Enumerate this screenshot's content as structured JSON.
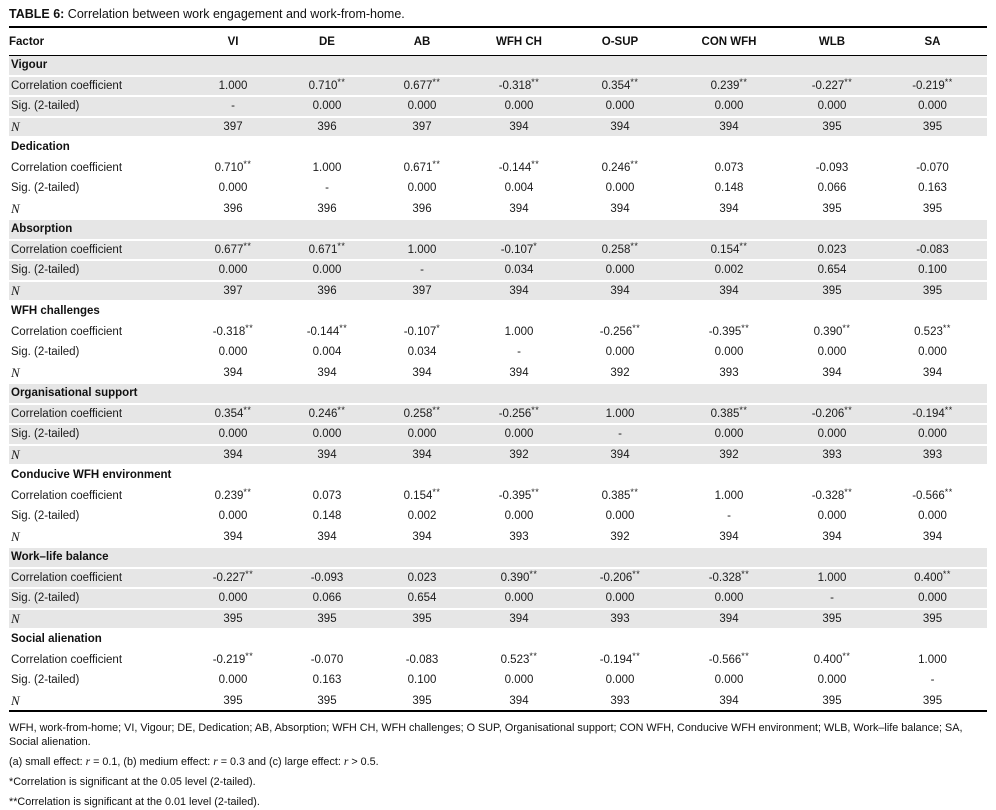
{
  "title": {
    "label": "TABLE 6:",
    "text": " Correlation between work engagement and work-from-home."
  },
  "columns": [
    "Factor",
    "VI",
    "DE",
    "AB",
    "WFH CH",
    "O-SUP",
    "CON WFH",
    "WLB",
    "SA"
  ],
  "row_labels": {
    "correlation": "Correlation coefficient",
    "sig": "Sig. (2-tailed)",
    "n": "N"
  },
  "sections": [
    {
      "factor": "Vigour",
      "shaded": true,
      "correlation": [
        "1.000",
        "0.710**",
        "0.677**",
        "-0.318**",
        "0.354**",
        "0.239**",
        "-0.227**",
        "-0.219**"
      ],
      "sig": [
        "-",
        "0.000",
        "0.000",
        "0.000",
        "0.000",
        "0.000",
        "0.000",
        "0.000"
      ],
      "n": [
        "397",
        "396",
        "397",
        "394",
        "394",
        "394",
        "395",
        "395"
      ]
    },
    {
      "factor": "Dedication",
      "shaded": false,
      "correlation": [
        "0.710**",
        "1.000",
        "0.671**",
        "-0.144**",
        "0.246**",
        "0.073",
        "-0.093",
        "-0.070"
      ],
      "sig": [
        "0.000",
        "-",
        "0.000",
        "0.004",
        "0.000",
        "0.148",
        "0.066",
        "0.163"
      ],
      "n": [
        "396",
        "396",
        "396",
        "394",
        "394",
        "394",
        "395",
        "395"
      ]
    },
    {
      "factor": "Absorption",
      "shaded": true,
      "correlation": [
        "0.677**",
        "0.671**",
        "1.000",
        "-0.107*",
        "0.258**",
        "0.154**",
        "0.023",
        "-0.083"
      ],
      "sig": [
        "0.000",
        "0.000",
        "-",
        "0.034",
        "0.000",
        "0.002",
        "0.654",
        "0.100"
      ],
      "n": [
        "397",
        "396",
        "397",
        "394",
        "394",
        "394",
        "395",
        "395"
      ]
    },
    {
      "factor": "WFH challenges",
      "shaded": false,
      "correlation": [
        "-0.318**",
        "-0.144**",
        "-0.107*",
        "1.000",
        "-0.256**",
        "-0.395**",
        "0.390**",
        "0.523**"
      ],
      "sig": [
        "0.000",
        "0.004",
        "0.034",
        "-",
        "0.000",
        "0.000",
        "0.000",
        "0.000"
      ],
      "n": [
        "394",
        "394",
        "394",
        "394",
        "392",
        "393",
        "394",
        "394"
      ]
    },
    {
      "factor": "Organisational support",
      "shaded": true,
      "correlation": [
        "0.354**",
        "0.246**",
        "0.258**",
        "-0.256**",
        "1.000",
        "0.385**",
        "-0.206**",
        "-0.194**"
      ],
      "sig": [
        "0.000",
        "0.000",
        "0.000",
        "0.000",
        "-",
        "0.000",
        "0.000",
        "0.000"
      ],
      "n": [
        "394",
        "394",
        "394",
        "392",
        "394",
        "392",
        "393",
        "393"
      ]
    },
    {
      "factor": "Conducive WFH environment",
      "shaded": false,
      "correlation": [
        "0.239**",
        "0.073",
        "0.154**",
        "-0.395**",
        "0.385**",
        "1.000",
        "-0.328**",
        "-0.566**"
      ],
      "sig": [
        "0.000",
        "0.148",
        "0.002",
        "0.000",
        "0.000",
        "-",
        "0.000",
        "0.000"
      ],
      "n": [
        "394",
        "394",
        "394",
        "393",
        "392",
        "394",
        "394",
        "394"
      ]
    },
    {
      "factor": "Work–life balance",
      "shaded": true,
      "correlation": [
        "-0.227**",
        "-0.093",
        "0.023",
        "0.390**",
        "-0.206**",
        "-0.328**",
        "1.000",
        "0.400**"
      ],
      "sig": [
        "0.000",
        "0.066",
        "0.654",
        "0.000",
        "0.000",
        "0.000",
        "-",
        "0.000"
      ],
      "n": [
        "395",
        "395",
        "395",
        "394",
        "393",
        "394",
        "395",
        "395"
      ]
    },
    {
      "factor": "Social alienation",
      "shaded": false,
      "correlation": [
        "-0.219**",
        "-0.070",
        "-0.083",
        "0.523**",
        "-0.194**",
        "-0.566**",
        "0.400**",
        "1.000"
      ],
      "sig": [
        "0.000",
        "0.163",
        "0.100",
        "0.000",
        "0.000",
        "0.000",
        "0.000",
        "-"
      ],
      "n": [
        "395",
        "395",
        "395",
        "394",
        "393",
        "394",
        "395",
        "395"
      ]
    }
  ],
  "footnotes": {
    "abbreviations": "WFH, work-from-home; VI, Vigour; DE, Dedication; AB, Absorption; WFH CH, WFH challenges; O SUP, Organisational support; CON WFH, Conducive WFH environment; WLB, Work–life balance; SA, Social alienation.",
    "effect_sizes": [
      {
        "text": "(a) small effect: ",
        "italic": false
      },
      {
        "text": "r",
        "italic": true
      },
      {
        "text": " = 0.1, (b) medium effect: ",
        "italic": false
      },
      {
        "text": "r",
        "italic": true
      },
      {
        "text": " = 0.3 and (c) large effect: ",
        "italic": false
      },
      {
        "text": "r",
        "italic": true
      },
      {
        "text": " > 0.5.",
        "italic": false
      }
    ],
    "sig_05": "*Correlation is significant at the 0.05 level (2-tailed).",
    "sig_01": "**Correlation is significant at the 0.01 level (2-tailed)."
  },
  "colors": {
    "shaded_row": "#e6e6e6",
    "rule": "#000000",
    "text": "#1a1a1a"
  }
}
